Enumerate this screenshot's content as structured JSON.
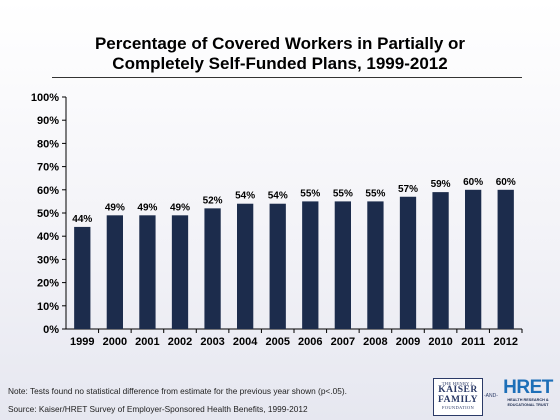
{
  "header": {
    "title_line1": "Percentage of Covered Workers in Partially or",
    "title_line2": "Completely Self-Funded Plans, 1999-2012"
  },
  "chart_data": {
    "type": "bar",
    "categories": [
      "1999",
      "2000",
      "2001",
      "2002",
      "2003",
      "2004",
      "2005",
      "2006",
      "2007",
      "2008",
      "2009",
      "2010",
      "2011",
      "2012"
    ],
    "values": [
      44,
      49,
      49,
      49,
      52,
      54,
      54,
      55,
      55,
      55,
      57,
      59,
      60,
      60
    ],
    "data_labels": [
      "44%",
      "49%",
      "49%",
      "49%",
      "52%",
      "54%",
      "54%",
      "55%",
      "55%",
      "55%",
      "57%",
      "59%",
      "60%",
      "60%"
    ],
    "ylim": [
      0,
      100
    ],
    "yticks": [
      0,
      10,
      20,
      30,
      40,
      50,
      60,
      70,
      80,
      90,
      100
    ],
    "ytick_labels": [
      "0%",
      "10%",
      "20%",
      "30%",
      "40%",
      "50%",
      "60%",
      "70%",
      "80%",
      "90%",
      "100%"
    ],
    "bar_color": "#1c2c4c",
    "grid": false,
    "legend": "none"
  },
  "footer": {
    "note": "Note: Tests found no statistical difference from estimate for the previous year shown (p<.05).",
    "source": "Source: Kaiser/HRET Survey of Employer-Sponsored Health Benefits, 1999-2012"
  },
  "logos": {
    "kff_top": "THE HENRY J.",
    "kff_line1": "KAISER",
    "kff_line2": "FAMILY",
    "kff_bottom": "FOUNDATION",
    "and": "-AND-",
    "hret": "HRET",
    "hret_sub1": "HEALTH RESEARCH &",
    "hret_sub2": "EDUCATIONAL TRUST"
  }
}
